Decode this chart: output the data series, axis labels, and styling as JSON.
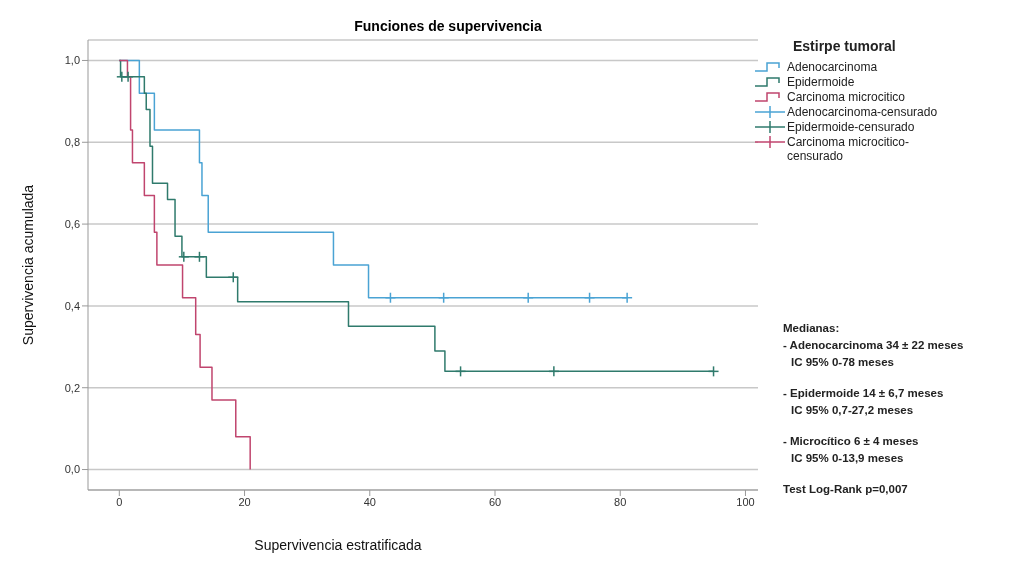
{
  "chart_data": {
    "type": "step",
    "title": "Funciones de supervivencia",
    "xlabel": "Supervivencia estratificada",
    "ylabel": "Supervivencia acumulada",
    "legend_title": "Estirpe tumoral",
    "xlim": [
      -5,
      102
    ],
    "xticks": [
      0,
      20,
      40,
      60,
      80,
      100
    ],
    "ylim": [
      -0.05,
      1.05
    ],
    "yticks": [
      {
        "value": 0,
        "label": "0,0"
      },
      {
        "value": 0.2,
        "label": "0,2"
      },
      {
        "value": 0.4,
        "label": "0,4"
      },
      {
        "value": 0.6,
        "label": "0,6"
      },
      {
        "value": 0.8,
        "label": "0,8"
      },
      {
        "value": 1,
        "label": "1,0"
      }
    ],
    "grid": "y",
    "legend": "top right",
    "line_style": "solid",
    "series": [
      {
        "name": "Adenocarcinoma",
        "color": "#4aa3d4",
        "x": [
          0,
          3.2,
          5.6,
          12.8,
          13.2,
          14.2,
          34.2,
          39.8,
          81.1
        ],
        "values": [
          1,
          0.92,
          0.83,
          0.75,
          0.67,
          0.58,
          0.5,
          0.42,
          0.42
        ]
      },
      {
        "name": "Epidermoide",
        "color": "#2f7a6c",
        "x": [
          0,
          0.2,
          4.0,
          4.3,
          4.9,
          5.3,
          7.7,
          8.9,
          10.0,
          13.9,
          18.9,
          36.6,
          50.4,
          52.0,
          94.9
        ],
        "values": [
          1,
          0.96,
          0.92,
          0.88,
          0.79,
          0.7,
          0.66,
          0.57,
          0.52,
          0.47,
          0.41,
          0.35,
          0.29,
          0.24,
          0.24
        ]
      },
      {
        "name": "Carcinoma microcitico",
        "color": "#c0456e",
        "x": [
          0,
          1.3,
          1.8,
          2.1,
          4.0,
          5.6,
          6.0,
          10.1,
          12.2,
          12.9,
          14.8,
          18.6,
          20.9
        ],
        "values": [
          1,
          0.96,
          0.83,
          0.75,
          0.67,
          0.58,
          0.5,
          0.42,
          0.33,
          0.25,
          0.17,
          0.08,
          0
        ]
      },
      {
        "name": "Adenocarcinoma-censurado",
        "type": "scatter",
        "marker": "cross",
        "color": "#4aa3d4",
        "x": [
          43.3,
          51.8,
          65.3,
          75.1,
          81.1
        ],
        "values": [
          0.42,
          0.42,
          0.42,
          0.42,
          0.42
        ]
      },
      {
        "name": "Epidermoide-censurado",
        "type": "scatter",
        "marker": "cross",
        "color": "#2f7a6c",
        "x": [
          0.4,
          1.4,
          10.3,
          12.8,
          18.2,
          54.5,
          69.4,
          94.9
        ],
        "values": [
          0.96,
          0.96,
          0.52,
          0.52,
          0.47,
          0.24,
          0.24,
          0.24
        ]
      },
      {
        "name": "Carcinoma microcitico-censurado",
        "type": "scatter",
        "marker": "cross",
        "color": "#c0456e"
      }
    ],
    "annotations": [
      "Medianas:",
      "- Adenocarcinoma 34 ± 22 meses",
      "IC 95% 0-78 meses",
      "- Epidermoide 14 ± 6,7 meses",
      "IC 95% 0,7-27,2 meses",
      "- Microcítico 6 ± 4 meses",
      "IC 95% 0-13,9 meses",
      "Test Log-Rank  p=0,007"
    ]
  }
}
